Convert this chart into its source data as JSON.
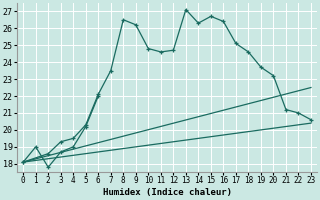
{
  "xlabel": "Humidex (Indice chaleur)",
  "background_color": "#cbe8e3",
  "grid_color": "#ffffff",
  "line_color": "#1a6b60",
  "xlim": [
    -0.5,
    23.5
  ],
  "ylim": [
    17.5,
    27.5
  ],
  "xticks": [
    0,
    1,
    2,
    3,
    4,
    5,
    6,
    7,
    8,
    9,
    10,
    11,
    12,
    13,
    14,
    15,
    16,
    17,
    18,
    19,
    20,
    21,
    22,
    23
  ],
  "yticks": [
    18,
    19,
    20,
    21,
    22,
    23,
    24,
    25,
    26,
    27
  ],
  "series_main": {
    "x": [
      0,
      2,
      3,
      4,
      5,
      6,
      7,
      8,
      9,
      10,
      11,
      12,
      13,
      14,
      15,
      16,
      17,
      18,
      19,
      20,
      21,
      22,
      23
    ],
    "y": [
      18.1,
      18.6,
      19.3,
      19.5,
      20.3,
      22.1,
      23.5,
      26.5,
      26.2,
      24.8,
      24.6,
      24.7,
      27.1,
      26.3,
      26.7,
      26.4,
      25.1,
      24.6,
      23.7,
      23.2,
      21.2,
      21.0,
      20.6
    ]
  },
  "series_short": {
    "x": [
      0,
      1,
      2,
      3,
      4,
      5,
      6
    ],
    "y": [
      18.1,
      19.0,
      17.8,
      18.7,
      19.0,
      20.2,
      22.0
    ]
  },
  "series_diag1": {
    "x": [
      0,
      23
    ],
    "y": [
      18.1,
      20.4
    ]
  },
  "series_diag2": {
    "x": [
      0,
      23
    ],
    "y": [
      18.1,
      22.5
    ]
  }
}
